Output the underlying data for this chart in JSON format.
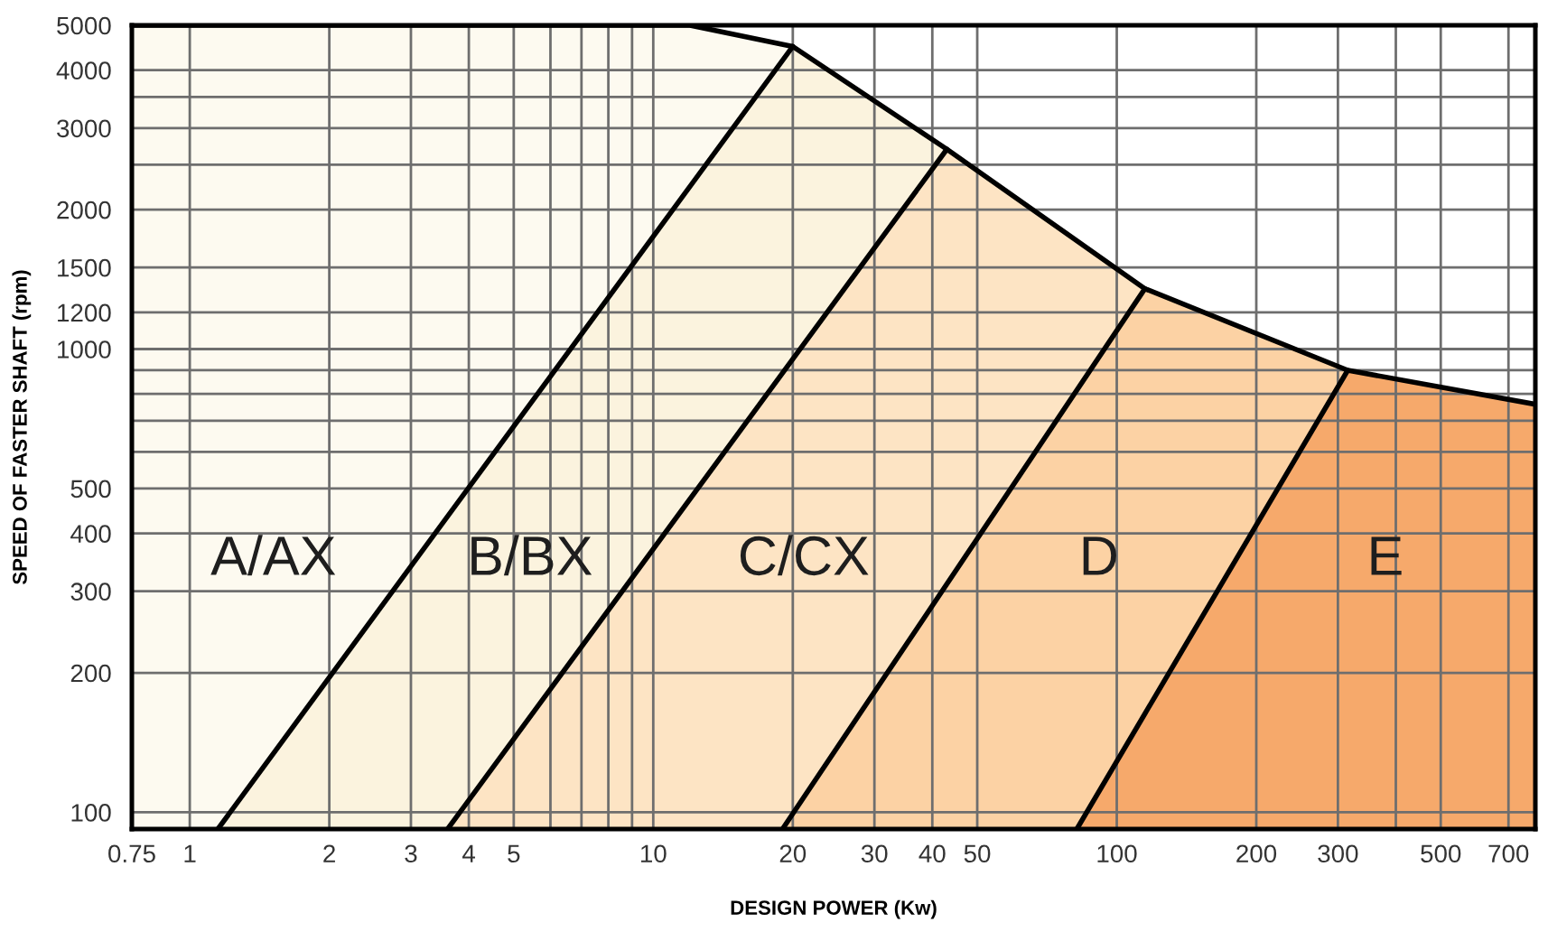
{
  "chart_data": {
    "type": "area",
    "xlabel": "DESIGN POWER (Kw)",
    "ylabel": "SPEED OF FASTER SHAFT (rpm)",
    "log": "xy",
    "grid": true,
    "xlim": [
      0.75,
      800
    ],
    "ylim": [
      92,
      5000
    ],
    "xticks": [
      0.75,
      1,
      2,
      3,
      4,
      5,
      {
        "value": 6,
        "label": null
      },
      {
        "value": 7,
        "label": null
      },
      {
        "value": 8,
        "label": null
      },
      {
        "value": 9,
        "label": null
      },
      10,
      20,
      30,
      40,
      50,
      100,
      200,
      300,
      {
        "value": 400,
        "label": null
      },
      500,
      700
    ],
    "yticks": [
      100,
      200,
      300,
      400,
      500,
      {
        "value": 600,
        "label": null
      },
      {
        "value": 700,
        "label": null
      },
      {
        "value": 800,
        "label": null
      },
      {
        "value": 900,
        "label": null
      },
      1000,
      1200,
      1500,
      2000,
      {
        "value": 2500,
        "label": null
      },
      3000,
      {
        "value": 3500,
        "label": null
      },
      4000,
      5000
    ],
    "series": [
      {
        "name": "A/AX",
        "color": "#fdfaf0",
        "x": [
          0.75,
          12,
          20
        ],
        "values": [
          5000,
          5000,
          4500
        ]
      },
      {
        "name": "B/BX",
        "color": "#fbf3de",
        "x": [
          1.15,
          20,
          43
        ],
        "values": [
          92,
          4500,
          2700
        ]
      },
      {
        "name": "C/CX",
        "color": "#fde4c4",
        "x": [
          3.6,
          43,
          115
        ],
        "values": [
          92,
          2700,
          1350
        ]
      },
      {
        "name": "D",
        "color": "#fcd2a4",
        "x": [
          19,
          115,
          315
        ],
        "values": [
          92,
          1350,
          900
        ]
      },
      {
        "name": "E",
        "color": "#f6a96b",
        "x": [
          82,
          315,
          800
        ],
        "values": [
          92,
          900,
          760
        ]
      }
    ]
  }
}
